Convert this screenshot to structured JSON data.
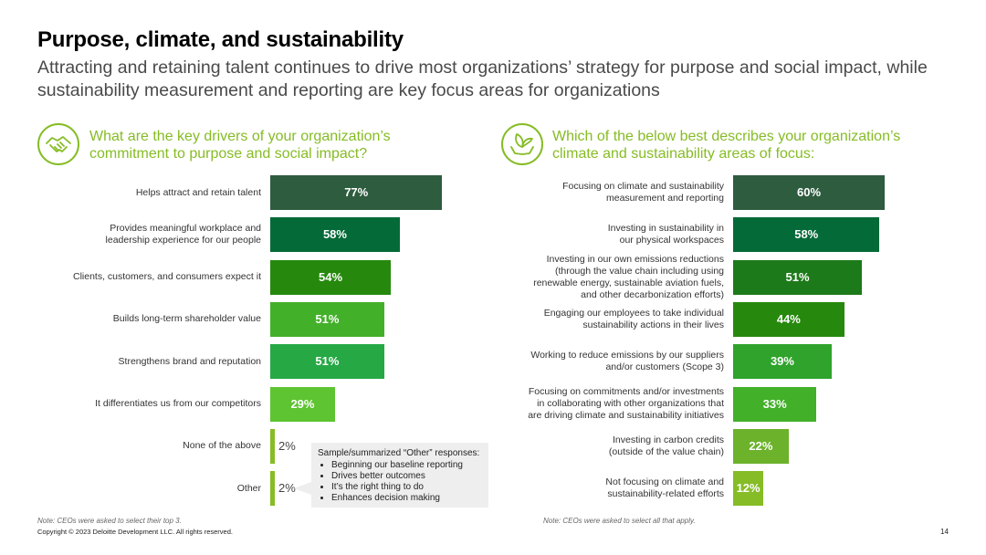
{
  "header": {
    "title": "Purpose, climate, and sustainability",
    "subtitle": "Attracting and retaining talent continues to drive most organizations’ strategy for purpose and social impact, while sustainability measurement and reporting are key focus areas for organizations"
  },
  "chart_data": [
    {
      "type": "bar",
      "orientation": "horizontal",
      "title": "What are the key drivers of your organization’s commitment to purpose and social impact?",
      "categories": [
        "Helps attract and retain talent",
        "Provides meaningful workplace and\nleadership experience for our people",
        "Clients, customers, and consumers expect it",
        "Builds long-term shareholder value",
        "Strengthens brand and reputation",
        "It differentiates us from our competitors",
        "None of the above",
        "Other"
      ],
      "values": [
        77,
        58,
        54,
        51,
        51,
        29,
        2,
        2
      ],
      "value_labels": [
        "77%",
        "58%",
        "54%",
        "51%",
        "51%",
        "29%",
        "2%",
        "2%"
      ],
      "colors": [
        "#2e5c3f",
        "#046a38",
        "#26890d",
        "#43b02a",
        "#26a844",
        "#5ec431",
        "#86bc25",
        "#86bc25"
      ],
      "xlim": [
        0,
        100
      ],
      "note": "Note: CEOs were asked to select their top 3.",
      "other_responses": {
        "title": "Sample/summarized “Other” responses:",
        "items": [
          "Beginning our baseline reporting",
          "Drives better outcomes",
          "It’s the right thing to do",
          "Enhances decision making"
        ]
      }
    },
    {
      "type": "bar",
      "orientation": "horizontal",
      "title": "Which of the below best describes your organization’s climate and sustainability areas of focus:",
      "categories": [
        "Focusing on climate and sustainability\nmeasurement and reporting",
        "Investing in sustainability in\nour physical workspaces",
        "Investing in our own emissions reductions\n(through the value chain including using\nrenewable energy, sustainable aviation fuels,\nand other decarbonization efforts)",
        "Engaging our employees to take individual\nsustainability actions in their lives",
        "Working to reduce emissions by our suppliers\nand/or customers (Scope 3)",
        "Focusing on commitments and/or investments\nin collaborating with other organizations that\nare driving climate and sustainability initiatives",
        "Investing in carbon credits\n(outside of the value chain)",
        "Not focusing on climate and\nsustainability-related efforts"
      ],
      "values": [
        60,
        58,
        51,
        44,
        39,
        33,
        22,
        12
      ],
      "value_labels": [
        "60%",
        "58%",
        "51%",
        "44%",
        "39%",
        "33%",
        "22%",
        "12%"
      ],
      "colors": [
        "#2e5c3f",
        "#046a38",
        "#1d7a1a",
        "#26890d",
        "#2fa32b",
        "#43b02a",
        "#6cb22b",
        "#86bc25"
      ],
      "xlim": [
        0,
        100
      ],
      "note": "Note: CEOs were asked to select all that apply."
    }
  ],
  "footer": {
    "copyright": "Copyright © 2023 Deloitte Development LLC. All rights reserved.",
    "page_number": "14"
  },
  "icons": {
    "left": "handshake-icon",
    "right": "leaf-hands-icon"
  }
}
